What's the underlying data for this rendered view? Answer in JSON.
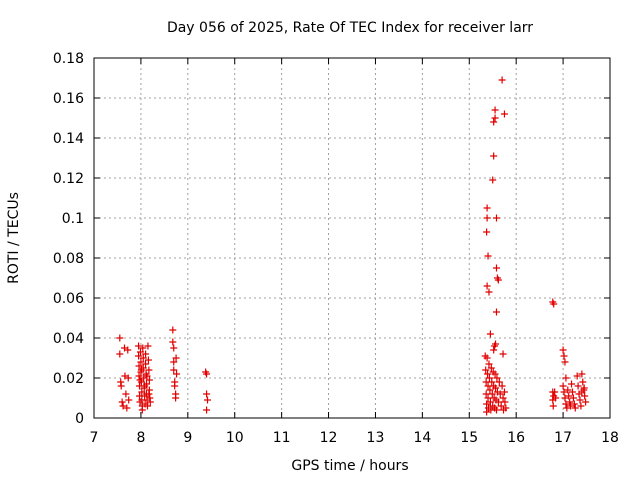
{
  "chart_data": {
    "type": "scatter",
    "title": "Day 056 of 2025, Rate Of TEC Index for receiver larr",
    "xlabel": "GPS time / hours",
    "ylabel": "ROTI / TECUs",
    "xlim": [
      7,
      18
    ],
    "ylim": [
      0,
      0.18
    ],
    "x_ticks": [
      "7",
      "8",
      "9",
      "10",
      "11",
      "12",
      "13",
      "14",
      "15",
      "16",
      "17",
      "18"
    ],
    "y_ticks": [
      "0",
      "0.02",
      "0.04",
      "0.06",
      "0.08",
      "0.1",
      "0.12",
      "0.14",
      "0.16",
      "0.18"
    ],
    "grid": true,
    "marker": "+",
    "point_color": "#e00000",
    "points": [
      [
        7.55,
        0.04
      ],
      [
        7.55,
        0.032
      ],
      [
        7.57,
        0.018
      ],
      [
        7.58,
        0.016
      ],
      [
        7.6,
        0.008
      ],
      [
        7.62,
        0.006
      ],
      [
        7.65,
        0.035
      ],
      [
        7.66,
        0.021
      ],
      [
        7.68,
        0.012
      ],
      [
        7.7,
        0.005
      ],
      [
        7.72,
        0.034
      ],
      [
        7.73,
        0.02
      ],
      [
        7.74,
        0.009
      ],
      [
        7.95,
        0.036
      ],
      [
        7.95,
        0.031
      ],
      [
        7.96,
        0.026
      ],
      [
        7.96,
        0.021
      ],
      [
        7.97,
        0.016
      ],
      [
        7.97,
        0.011
      ],
      [
        7.98,
        0.008
      ],
      [
        7.99,
        0.033
      ],
      [
        8.0,
        0.028
      ],
      [
        8.0,
        0.023
      ],
      [
        8.01,
        0.018
      ],
      [
        8.02,
        0.013
      ],
      [
        8.02,
        0.009
      ],
      [
        8.03,
        0.006
      ],
      [
        8.04,
        0.035
      ],
      [
        8.05,
        0.03
      ],
      [
        8.05,
        0.025
      ],
      [
        8.06,
        0.02
      ],
      [
        8.07,
        0.015
      ],
      [
        8.08,
        0.011
      ],
      [
        8.09,
        0.007
      ],
      [
        8.1,
        0.032
      ],
      [
        8.1,
        0.027
      ],
      [
        8.11,
        0.022
      ],
      [
        8.12,
        0.017
      ],
      [
        8.12,
        0.012
      ],
      [
        8.13,
        0.009
      ],
      [
        8.14,
        0.006
      ],
      [
        8.15,
        0.036
      ],
      [
        8.16,
        0.029
      ],
      [
        8.17,
        0.024
      ],
      [
        8.18,
        0.019
      ],
      [
        8.18,
        0.014
      ],
      [
        8.19,
        0.01
      ],
      [
        8.2,
        0.008
      ],
      [
        8.03,
        0.004
      ],
      [
        8.08,
        0.016
      ],
      [
        8.13,
        0.021
      ],
      [
        8.17,
        0.012
      ],
      [
        7.98,
        0.019
      ],
      [
        8.01,
        0.024
      ],
      [
        8.68,
        0.044
      ],
      [
        8.68,
        0.038
      ],
      [
        8.7,
        0.035
      ],
      [
        8.7,
        0.028
      ],
      [
        8.7,
        0.024
      ],
      [
        8.72,
        0.018
      ],
      [
        8.72,
        0.016
      ],
      [
        8.74,
        0.012
      ],
      [
        8.74,
        0.01
      ],
      [
        8.75,
        0.03
      ],
      [
        8.76,
        0.022
      ],
      [
        9.38,
        0.023
      ],
      [
        9.4,
        0.022
      ],
      [
        9.4,
        0.012
      ],
      [
        9.42,
        0.009
      ],
      [
        9.4,
        0.004
      ],
      [
        15.34,
        0.031
      ],
      [
        15.35,
        0.024
      ],
      [
        15.36,
        0.018
      ],
      [
        15.36,
        0.012
      ],
      [
        15.37,
        0.007
      ],
      [
        15.37,
        0.003
      ],
      [
        15.38,
        0.03
      ],
      [
        15.39,
        0.022
      ],
      [
        15.4,
        0.016
      ],
      [
        15.4,
        0.01
      ],
      [
        15.41,
        0.005
      ],
      [
        15.42,
        0.027
      ],
      [
        15.43,
        0.02
      ],
      [
        15.44,
        0.014
      ],
      [
        15.45,
        0.008
      ],
      [
        15.46,
        0.004
      ],
      [
        15.47,
        0.025
      ],
      [
        15.48,
        0.018
      ],
      [
        15.49,
        0.012
      ],
      [
        15.5,
        0.006
      ],
      [
        15.51,
        0.023
      ],
      [
        15.52,
        0.016
      ],
      [
        15.53,
        0.01
      ],
      [
        15.54,
        0.005
      ],
      [
        15.55,
        0.022
      ],
      [
        15.56,
        0.015
      ],
      [
        15.57,
        0.009
      ],
      [
        15.58,
        0.004
      ],
      [
        15.59,
        0.02
      ],
      [
        15.6,
        0.013
      ],
      [
        15.62,
        0.008
      ],
      [
        15.64,
        0.018
      ],
      [
        15.66,
        0.012
      ],
      [
        15.68,
        0.006
      ],
      [
        15.7,
        0.016
      ],
      [
        15.72,
        0.01
      ],
      [
        15.73,
        0.004
      ],
      [
        15.75,
        0.013
      ],
      [
        15.76,
        0.008
      ],
      [
        15.78,
        0.005
      ],
      [
        15.38,
        0.105
      ],
      [
        15.38,
        0.1
      ],
      [
        15.37,
        0.093
      ],
      [
        15.4,
        0.081
      ],
      [
        15.38,
        0.066
      ],
      [
        15.42,
        0.063
      ],
      [
        15.45,
        0.042
      ],
      [
        15.5,
        0.119
      ],
      [
        15.52,
        0.131
      ],
      [
        15.52,
        0.148
      ],
      [
        15.55,
        0.15
      ],
      [
        15.55,
        0.154
      ],
      [
        15.58,
        0.1
      ],
      [
        15.58,
        0.075
      ],
      [
        15.6,
        0.07
      ],
      [
        15.62,
        0.069
      ],
      [
        15.58,
        0.053
      ],
      [
        15.56,
        0.037
      ],
      [
        15.54,
        0.036
      ],
      [
        15.52,
        0.034
      ],
      [
        15.7,
        0.169
      ],
      [
        15.75,
        0.152
      ],
      [
        15.72,
        0.032
      ],
      [
        16.78,
        0.058
      ],
      [
        16.8,
        0.057
      ],
      [
        16.78,
        0.013
      ],
      [
        16.78,
        0.009
      ],
      [
        16.79,
        0.006
      ],
      [
        16.8,
        0.011
      ],
      [
        16.82,
        0.013
      ],
      [
        16.84,
        0.01
      ],
      [
        17.0,
        0.034
      ],
      [
        17.02,
        0.031
      ],
      [
        17.04,
        0.028
      ],
      [
        17.06,
        0.02
      ],
      [
        17.0,
        0.016
      ],
      [
        17.02,
        0.013
      ],
      [
        17.04,
        0.01
      ],
      [
        17.06,
        0.007
      ],
      [
        17.08,
        0.005
      ],
      [
        17.1,
        0.014
      ],
      [
        17.12,
        0.011
      ],
      [
        17.14,
        0.008
      ],
      [
        17.16,
        0.006
      ],
      [
        17.18,
        0.017
      ],
      [
        17.2,
        0.013
      ],
      [
        17.22,
        0.01
      ],
      [
        17.24,
        0.007
      ],
      [
        17.26,
        0.005
      ],
      [
        17.3,
        0.021
      ],
      [
        17.32,
        0.016
      ],
      [
        17.34,
        0.012
      ],
      [
        17.36,
        0.009
      ],
      [
        17.38,
        0.006
      ],
      [
        17.4,
        0.022
      ],
      [
        17.42,
        0.018
      ],
      [
        17.44,
        0.014
      ],
      [
        17.46,
        0.011
      ],
      [
        17.48,
        0.008
      ],
      [
        17.45,
        0.015
      ],
      [
        17.4,
        0.013
      ]
    ]
  }
}
